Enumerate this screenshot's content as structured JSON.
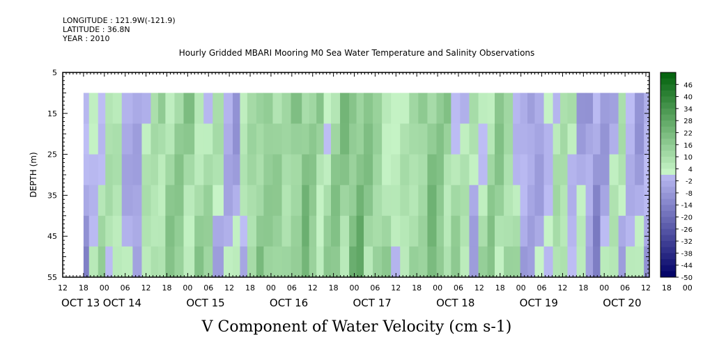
{
  "header": {
    "longitude": "LONGITUDE : 121.9W(-121.9)",
    "latitude": "LATITUDE : 36.8N",
    "year": "YEAR : 2010",
    "title": "Hourly Gridded MBARI Mooring M0 Sea Water Temperature and Salinity Observations"
  },
  "chart_data": {
    "type": "heatmap",
    "title": "Hourly Gridded MBARI Mooring M0 Sea Water Temperature and Salinity Observations",
    "xlabel": "V Component of Water Velocity (cm s-1)",
    "ylabel": "DEPTH (m)",
    "ylim": [
      5,
      55
    ],
    "y_inverted": true,
    "y_ticks": [
      5,
      15,
      25,
      35,
      45,
      55
    ],
    "data_depth_range": [
      10,
      55
    ],
    "x_range_hours": [
      "OCT 13 12:00",
      "OCT 20 13:00"
    ],
    "x_hour_ticks": [
      "12",
      "18",
      "00",
      "06",
      "12",
      "18",
      "00",
      "06",
      "12",
      "18",
      "00",
      "06",
      "12",
      "18",
      "00",
      "06",
      "12",
      "18",
      "00",
      "06",
      "12",
      "18",
      "00",
      "06",
      "12",
      "18",
      "00",
      "06",
      "12",
      "18",
      "00",
      "06",
      "12"
    ],
    "x_day_labels": [
      "OCT 13",
      "OCT 14",
      "OCT 15",
      "OCT 16",
      "OCT 17",
      "OCT 18",
      "OCT 19",
      "OCT 20"
    ],
    "colorbar": {
      "labels": [
        "46",
        "40",
        "34",
        "28",
        "22",
        "16",
        "10",
        "4",
        "-2",
        "-8",
        "-14",
        "-20",
        "-26",
        "-32",
        "-38",
        "-44",
        "-50"
      ],
      "range": [
        -50,
        52
      ],
      "step": 3
    },
    "data_start": "OCT 13 18:00",
    "band_times": [
      18,
      24,
      34,
      42,
      50,
      60,
      72,
      82,
      92,
      100,
      108,
      118,
      128,
      140,
      150,
      160,
      172,
      182,
      190,
      198,
      208,
      216,
      226,
      236,
      246,
      258,
      266,
      274,
      282,
      290,
      300,
      310,
      318,
      326,
      336,
      346,
      356,
      366,
      376,
      386,
      396,
      406,
      414,
      422,
      432,
      442,
      452,
      462,
      470,
      480,
      490,
      498,
      506,
      514,
      524,
      534,
      542,
      550,
      560,
      570,
      578,
      586,
      596,
      606,
      614,
      624,
      634,
      640
    ],
    "band_values": [
      -4,
      2,
      6,
      8,
      6,
      -2,
      -4,
      4,
      8,
      10,
      12,
      14,
      12,
      10,
      8,
      4,
      -2,
      -4,
      4,
      10,
      14,
      16,
      12,
      10,
      16,
      18,
      14,
      10,
      8,
      14,
      16,
      18,
      20,
      16,
      12,
      8,
      4,
      6,
      10,
      14,
      18,
      16,
      12,
      8,
      4,
      2,
      6,
      12,
      14,
      10,
      4,
      -2,
      -6,
      -4,
      2,
      6,
      8,
      4,
      -2,
      -6,
      -8,
      -4,
      2,
      4,
      0,
      -4,
      -2,
      2
    ]
  }
}
